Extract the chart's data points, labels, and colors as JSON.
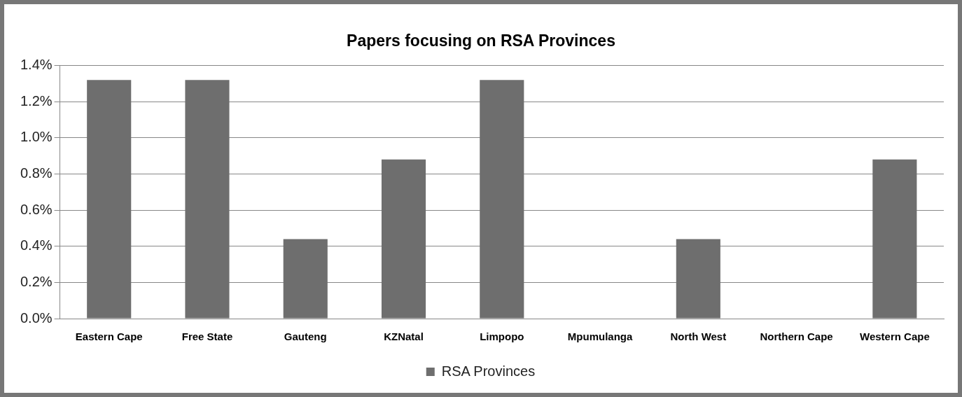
{
  "chart_data": {
    "type": "bar",
    "title": "Papers focusing on RSA Provinces",
    "categories": [
      "Eastern Cape",
      "Free State",
      "Gauteng",
      "KZNatal",
      "Limpopo",
      "Mpumulanga",
      "North West",
      "Northern Cape",
      "Western Cape"
    ],
    "series": [
      {
        "name": "RSA Provinces",
        "color": "#6e6e6e",
        "values": [
          1.32,
          1.32,
          0.44,
          0.88,
          1.32,
          0,
          0.44,
          0,
          0.88
        ]
      }
    ],
    "ylim": [
      0,
      1.4
    ],
    "yticks": [
      {
        "value": 0,
        "label": "0.0%"
      },
      {
        "value": 0.2,
        "label": "0.2%"
      },
      {
        "value": 0.4,
        "label": "0.4%"
      },
      {
        "value": 0.6,
        "label": "0.6%"
      },
      {
        "value": 0.8,
        "label": "0.8%"
      },
      {
        "value": 1.0,
        "label": "1.0%"
      },
      {
        "value": 1.2,
        "label": "1.2%"
      },
      {
        "value": 1.4,
        "label": "1.4%"
      }
    ],
    "grid": "y",
    "legend": "bottom"
  }
}
